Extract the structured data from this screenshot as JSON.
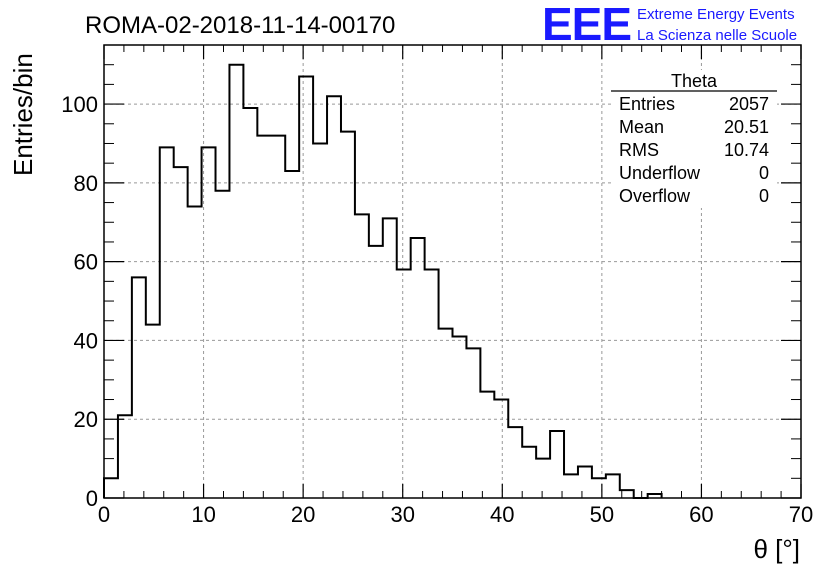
{
  "header": {
    "run_title": "ROMA-02-2018-11-14-00170"
  },
  "logo": {
    "acronym": "EEE",
    "line1": "Extreme Energy Events",
    "line2": "La Scienza nelle Scuole",
    "color": "#1a1aff"
  },
  "stats_box": {
    "name": "Theta",
    "rows": [
      {
        "label": "Entries",
        "value": "2057"
      },
      {
        "label": "Mean",
        "value": "20.51"
      },
      {
        "label": "RMS",
        "value": "10.74"
      },
      {
        "label": "Underflow",
        "value": "0"
      },
      {
        "label": "Overflow",
        "value": "0"
      }
    ]
  },
  "chart_data": {
    "type": "bar",
    "style": "step-histogram",
    "title": "ROMA-02-2018-11-14-00170",
    "xlabel": "θ [°]",
    "ylabel": "Entries/bin",
    "xlim": [
      0,
      70
    ],
    "ylim": [
      0,
      115
    ],
    "bin_width": 1.4,
    "x_ticks": [
      0,
      10,
      20,
      30,
      40,
      50,
      60,
      70
    ],
    "y_ticks": [
      0,
      20,
      40,
      60,
      80,
      100
    ],
    "grid": true,
    "bin_edges": [
      0,
      1.4,
      2.8,
      4.2,
      5.6,
      7.0,
      8.4,
      9.8,
      11.2,
      12.6,
      14.0,
      15.4,
      16.8,
      18.2,
      19.6,
      21.0,
      22.4,
      23.8,
      25.2,
      26.6,
      28.0,
      29.4,
      30.8,
      32.2,
      33.6,
      35.0,
      36.4,
      37.8,
      39.2,
      40.6,
      42.0,
      43.4,
      44.8,
      46.2,
      47.6,
      49.0,
      50.4,
      51.8,
      53.2,
      54.6,
      56.0
    ],
    "values": [
      5,
      21,
      56,
      44,
      89,
      84,
      74,
      89,
      78,
      110,
      99,
      92,
      92,
      83,
      107,
      90,
      102,
      93,
      72,
      64,
      71,
      58,
      66,
      58,
      43,
      41,
      38,
      27,
      25,
      18,
      13,
      10,
      17,
      6,
      8,
      5,
      6,
      2,
      0,
      1
    ]
  }
}
